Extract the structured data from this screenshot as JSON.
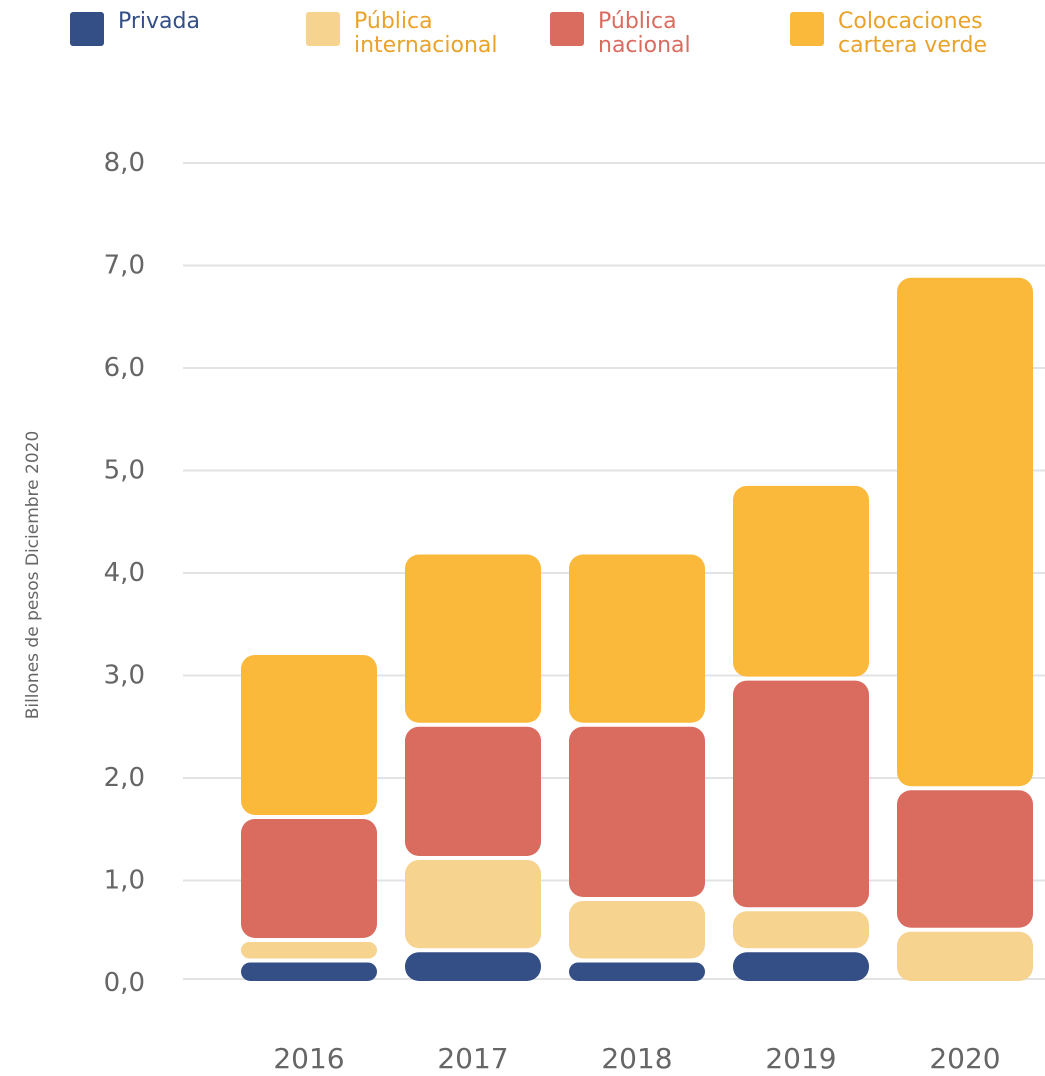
{
  "chart_data": {
    "type": "bar",
    "stacked": true,
    "title": "",
    "xlabel": "",
    "ylabel": "Billones de pesos Diciembre 2020",
    "ylim": [
      0,
      8
    ],
    "yticks": [
      "0,0",
      "1,0",
      "2,0",
      "3,0",
      "4,0",
      "5,0",
      "6,0",
      "7,0",
      "8,0"
    ],
    "categories": [
      "2016",
      "2017",
      "2018",
      "2019",
      "2020"
    ],
    "grid": true,
    "legend_position": "top",
    "series": [
      {
        "name": "Privada",
        "legend_lines": [
          "Privada"
        ],
        "color": "#344e86",
        "values": [
          0.22,
          0.32,
          0.22,
          0.32,
          0.0
        ]
      },
      {
        "name": "Pública internacional",
        "legend_lines": [
          "Pública",
          "internacional"
        ],
        "color": "#f6d38f",
        "values": [
          0.2,
          0.9,
          0.6,
          0.4,
          0.52
        ]
      },
      {
        "name": "Pública nacional",
        "legend_lines": [
          "Pública",
          "nacional"
        ],
        "color": "#da6b5f",
        "values": [
          1.2,
          1.3,
          1.7,
          2.25,
          1.38
        ]
      },
      {
        "name": "Colocaciones cartera verde",
        "legend_lines": [
          "Colocaciones",
          "cartera verde"
        ],
        "color": "#fbb93c",
        "values": [
          1.6,
          1.68,
          1.68,
          1.9,
          5.0
        ]
      }
    ],
    "colors": {
      "grid": "#e3e3e3",
      "tick_text": "#666666",
      "axis_title": "#666666"
    }
  }
}
